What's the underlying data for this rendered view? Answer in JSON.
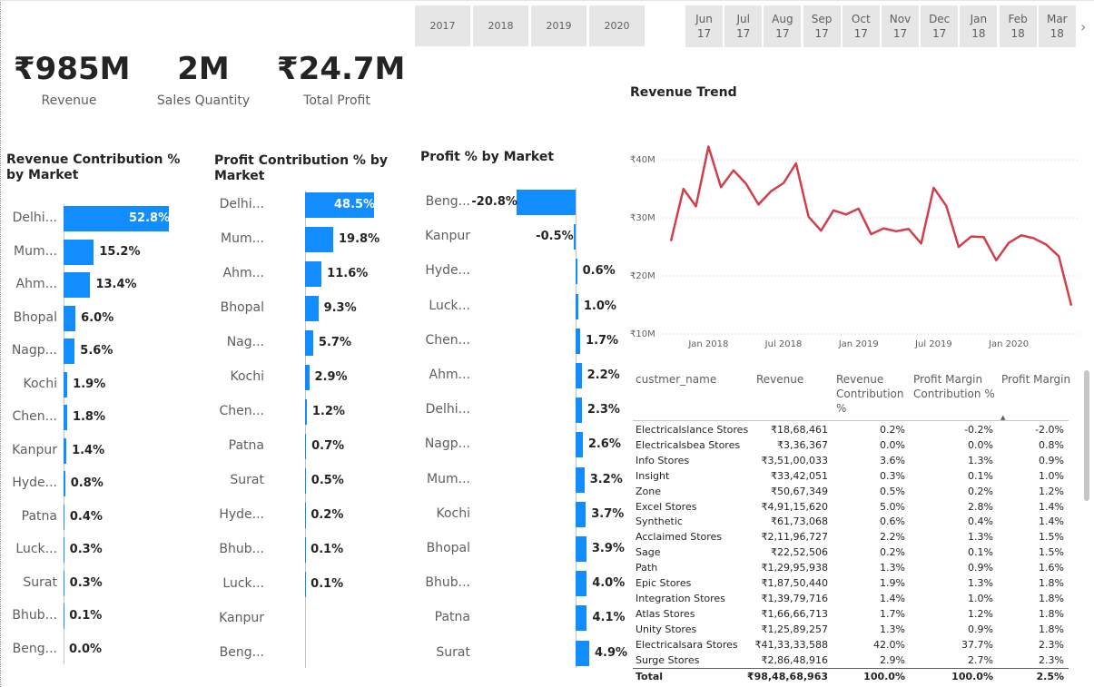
{
  "slicers": {
    "years": [
      "2017",
      "2018",
      "2019",
      "2020"
    ],
    "months": [
      {
        "m": "Jun",
        "y": "17"
      },
      {
        "m": "Jul",
        "y": "17"
      },
      {
        "m": "Aug",
        "y": "17"
      },
      {
        "m": "Sep",
        "y": "17"
      },
      {
        "m": "Oct",
        "y": "17"
      },
      {
        "m": "Nov",
        "y": "17"
      },
      {
        "m": "Dec",
        "y": "17"
      },
      {
        "m": "Jan",
        "y": "18"
      },
      {
        "m": "Feb",
        "y": "18"
      },
      {
        "m": "Mar",
        "y": "18"
      }
    ],
    "scroll_icon": "chevron-right-icon"
  },
  "kpis": [
    {
      "value": "₹985M",
      "label": "Revenue"
    },
    {
      "value": "2M",
      "label": "Sales Quantity"
    },
    {
      "value": "₹24.7M",
      "label": "Total Profit"
    }
  ],
  "colors": {
    "bar": "#118dff",
    "line": "#d13f4b"
  },
  "revenue_contribution": {
    "title": "Revenue Contribution % by Market",
    "items": [
      {
        "label": "Delhi...",
        "value": 52.8,
        "text": "52.8%"
      },
      {
        "label": "Mum...",
        "value": 15.2,
        "text": "15.2%"
      },
      {
        "label": "Ahm...",
        "value": 13.4,
        "text": "13.4%"
      },
      {
        "label": "Bhopal",
        "value": 6.0,
        "text": "6.0%"
      },
      {
        "label": "Nagp...",
        "value": 5.6,
        "text": "5.6%"
      },
      {
        "label": "Kochi",
        "value": 1.9,
        "text": "1.9%"
      },
      {
        "label": "Chen...",
        "value": 1.8,
        "text": "1.8%"
      },
      {
        "label": "Kanpur",
        "value": 1.4,
        "text": "1.4%"
      },
      {
        "label": "Hyde...",
        "value": 0.8,
        "text": "0.8%"
      },
      {
        "label": "Patna",
        "value": 0.4,
        "text": "0.4%"
      },
      {
        "label": "Luck...",
        "value": 0.3,
        "text": "0.3%"
      },
      {
        "label": "Surat",
        "value": 0.3,
        "text": "0.3%"
      },
      {
        "label": "Bhub...",
        "value": 0.1,
        "text": "0.1%"
      },
      {
        "label": "Beng...",
        "value": 0.0,
        "text": "0.0%"
      }
    ]
  },
  "profit_contribution": {
    "title": "Profit Contribution % by Market",
    "items": [
      {
        "label": "Delhi...",
        "value": 48.5,
        "text": "48.5%"
      },
      {
        "label": "Mum...",
        "value": 19.8,
        "text": "19.8%"
      },
      {
        "label": "Ahm...",
        "value": 11.6,
        "text": "11.6%"
      },
      {
        "label": "Bhopal",
        "value": 9.3,
        "text": "9.3%"
      },
      {
        "label": "Nag...",
        "value": 5.7,
        "text": "5.7%"
      },
      {
        "label": "Kochi",
        "value": 2.9,
        "text": "2.9%"
      },
      {
        "label": "Chen...",
        "value": 1.2,
        "text": "1.2%"
      },
      {
        "label": "Patna",
        "value": 0.7,
        "text": "0.7%"
      },
      {
        "label": "Surat",
        "value": 0.5,
        "text": "0.5%"
      },
      {
        "label": "Hyde...",
        "value": 0.2,
        "text": "0.2%"
      },
      {
        "label": "Bhub...",
        "value": 0.1,
        "text": "0.1%"
      },
      {
        "label": "Luck...",
        "value": 0.1,
        "text": "0.1%"
      },
      {
        "label": "Kanpur",
        "value": 0.0,
        "text": ""
      },
      {
        "label": "Beng...",
        "value": 0.0,
        "text": ""
      }
    ]
  },
  "profit_pct": {
    "title": "Profit % by Market",
    "items": [
      {
        "label": "Beng...",
        "value": -20.8,
        "text": "-20.8%"
      },
      {
        "label": "Kanpur",
        "value": -0.5,
        "text": "-0.5%"
      },
      {
        "label": "Hyde...",
        "value": 0.6,
        "text": "0.6%"
      },
      {
        "label": "Luck...",
        "value": 1.0,
        "text": "1.0%"
      },
      {
        "label": "Chen...",
        "value": 1.7,
        "text": "1.7%"
      },
      {
        "label": "Ahm...",
        "value": 2.2,
        "text": "2.2%"
      },
      {
        "label": "Delhi...",
        "value": 2.3,
        "text": "2.3%"
      },
      {
        "label": "Nagp...",
        "value": 2.6,
        "text": "2.6%"
      },
      {
        "label": "Mum...",
        "value": 3.2,
        "text": "3.2%"
      },
      {
        "label": "Kochi",
        "value": 3.7,
        "text": "3.7%"
      },
      {
        "label": "Bhopal",
        "value": 3.9,
        "text": "3.9%"
      },
      {
        "label": "Bhub...",
        "value": 4.0,
        "text": "4.0%"
      },
      {
        "label": "Patna",
        "value": 4.1,
        "text": "4.1%"
      },
      {
        "label": "Surat",
        "value": 4.9,
        "text": "4.9%"
      }
    ]
  },
  "chart_data": {
    "type": "line",
    "title": "Revenue Trend",
    "xlabel": "",
    "ylabel": "",
    "x_tick_labels": [
      "Jan 2018",
      "Jul 2018",
      "Jan 2019",
      "Jul 2019",
      "Jan 2020"
    ],
    "y_tick_labels": [
      "₹10M",
      "₹20M",
      "₹30M",
      "₹40M"
    ],
    "y_ticks": [
      10,
      20,
      30,
      40
    ],
    "ylim": [
      10,
      43
    ],
    "y_unit": "₹M",
    "grid": true,
    "x": [
      "2017-10",
      "2017-11",
      "2017-12",
      "2018-01",
      "2018-02",
      "2018-03",
      "2018-04",
      "2018-05",
      "2018-06",
      "2018-07",
      "2018-08",
      "2018-09",
      "2018-10",
      "2018-11",
      "2018-12",
      "2019-01",
      "2019-02",
      "2019-03",
      "2019-04",
      "2019-05",
      "2019-06",
      "2019-07",
      "2019-08",
      "2019-09",
      "2019-10",
      "2019-11",
      "2019-12",
      "2020-01",
      "2020-02",
      "2020-03",
      "2020-04",
      "2020-05",
      "2020-06"
    ],
    "series": [
      {
        "values": [
          26.0,
          35.0,
          32.0,
          42.3,
          35.3,
          38.2,
          35.9,
          32.3,
          34.6,
          36.0,
          39.4,
          30.2,
          27.8,
          31.3,
          30.6,
          31.6,
          27.2,
          28.2,
          27.7,
          28.1,
          25.6,
          35.2,
          32.1,
          25.0,
          26.8,
          26.7,
          22.7,
          25.7,
          27.0,
          26.5,
          25.4,
          23.4,
          14.9
        ]
      }
    ]
  },
  "table": {
    "headers": [
      "custmer_name",
      "Revenue",
      "Revenue Contribution %",
      "Profit Margin Contribution %",
      "Profit Margin"
    ],
    "sort_icon": "sort-ascending-icon",
    "rows": [
      [
        "Electricalslance Stores",
        "₹18,68,461",
        "0.2%",
        "-0.2%",
        "-2.0%"
      ],
      [
        "Electricalsbea Stores",
        "₹3,36,367",
        "0.0%",
        "0.0%",
        "0.8%"
      ],
      [
        "Info Stores",
        "₹3,51,00,033",
        "3.6%",
        "1.3%",
        "0.9%"
      ],
      [
        "Insight",
        "₹33,42,051",
        "0.3%",
        "0.1%",
        "1.0%"
      ],
      [
        "Zone",
        "₹50,67,349",
        "0.5%",
        "0.2%",
        "1.2%"
      ],
      [
        "Excel Stores",
        "₹4,91,15,620",
        "5.0%",
        "2.8%",
        "1.4%"
      ],
      [
        "Synthetic",
        "₹61,73,068",
        "0.6%",
        "0.4%",
        "1.4%"
      ],
      [
        "Acclaimed Stores",
        "₹2,11,96,727",
        "2.2%",
        "1.3%",
        "1.5%"
      ],
      [
        "Sage",
        "₹22,52,506",
        "0.2%",
        "0.1%",
        "1.5%"
      ],
      [
        "Path",
        "₹1,29,95,938",
        "1.3%",
        "0.9%",
        "1.6%"
      ],
      [
        "Epic Stores",
        "₹1,87,50,440",
        "1.9%",
        "1.3%",
        "1.8%"
      ],
      [
        "Integration Stores",
        "₹1,39,79,716",
        "1.4%",
        "1.0%",
        "1.8%"
      ],
      [
        "Atlas Stores",
        "₹1,66,66,713",
        "1.7%",
        "1.2%",
        "1.8%"
      ],
      [
        "Unity Stores",
        "₹1,25,89,257",
        "1.3%",
        "0.9%",
        "1.8%"
      ],
      [
        "Electricalsara Stores",
        "₹41,33,33,588",
        "42.0%",
        "37.7%",
        "2.3%"
      ],
      [
        "Surge Stores",
        "₹2,86,48,916",
        "2.9%",
        "2.7%",
        "2.3%"
      ]
    ],
    "total": [
      "Total",
      "₹98,48,68,963",
      "100.0%",
      "100.0%",
      "2.5%"
    ]
  }
}
